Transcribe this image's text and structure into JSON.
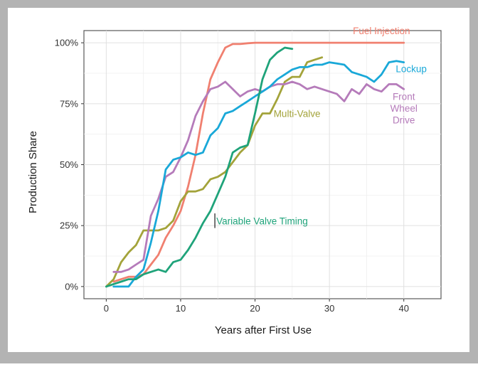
{
  "chart_data": {
    "type": "line",
    "xlabel": "Years after First Use",
    "ylabel": "Production Share",
    "xlim": [
      -3,
      45
    ],
    "ylim": [
      -0.05,
      1.05
    ],
    "x_ticks": [
      0,
      10,
      20,
      30,
      40
    ],
    "y_ticks": [
      {
        "value": 0,
        "label": "0%"
      },
      {
        "value": 0.25,
        "label": "25%"
      },
      {
        "value": 0.5,
        "label": "50%"
      },
      {
        "value": 0.75,
        "label": "75%"
      },
      {
        "value": 1.0,
        "label": "100%"
      }
    ],
    "grid": true,
    "legend": "direct labels on lines",
    "series": [
      {
        "name": "Fuel Injection",
        "color": "#F08070",
        "points": [
          [
            1,
            0.02
          ],
          [
            2,
            0.03
          ],
          [
            3,
            0.04
          ],
          [
            4,
            0.04
          ],
          [
            5,
            0.05
          ],
          [
            6,
            0.09
          ],
          [
            7,
            0.13
          ],
          [
            8,
            0.2
          ],
          [
            9,
            0.25
          ],
          [
            10,
            0.31
          ],
          [
            11,
            0.41
          ],
          [
            12,
            0.54
          ],
          [
            13,
            0.71
          ],
          [
            14,
            0.85
          ],
          [
            15,
            0.92
          ],
          [
            16,
            0.98
          ],
          [
            17,
            0.995
          ],
          [
            18,
            0.995
          ],
          [
            19,
            0.998
          ],
          [
            20,
            1.0
          ],
          [
            22,
            1.0
          ],
          [
            25,
            1.0
          ],
          [
            30,
            1.0
          ],
          [
            35,
            1.0
          ],
          [
            40,
            1.0
          ]
        ]
      },
      {
        "name": "Lockup",
        "color": "#19A8D8",
        "points": [
          [
            1,
            0.0
          ],
          [
            2,
            0.0
          ],
          [
            3,
            0.0
          ],
          [
            4,
            0.04
          ],
          [
            5,
            0.07
          ],
          [
            6,
            0.18
          ],
          [
            7,
            0.31
          ],
          [
            8,
            0.48
          ],
          [
            9,
            0.52
          ],
          [
            10,
            0.53
          ],
          [
            11,
            0.55
          ],
          [
            12,
            0.54
          ],
          [
            13,
            0.55
          ],
          [
            14,
            0.62
          ],
          [
            15,
            0.65
          ],
          [
            16,
            0.71
          ],
          [
            17,
            0.72
          ],
          [
            18,
            0.74
          ],
          [
            19,
            0.76
          ],
          [
            20,
            0.78
          ],
          [
            21,
            0.8
          ],
          [
            22,
            0.82
          ],
          [
            23,
            0.85
          ],
          [
            24,
            0.87
          ],
          [
            25,
            0.89
          ],
          [
            26,
            0.9
          ],
          [
            27,
            0.9
          ],
          [
            28,
            0.91
          ],
          [
            29,
            0.91
          ],
          [
            30,
            0.92
          ],
          [
            31,
            0.915
          ],
          [
            32,
            0.91
          ],
          [
            33,
            0.88
          ],
          [
            34,
            0.87
          ],
          [
            35,
            0.86
          ],
          [
            36,
            0.84
          ],
          [
            37,
            0.87
          ],
          [
            38,
            0.92
          ],
          [
            39,
            0.925
          ],
          [
            40,
            0.92
          ]
        ]
      },
      {
        "name": "Front Wheel Drive",
        "color": "#B57BBA",
        "points": [
          [
            1,
            0.06
          ],
          [
            2,
            0.06
          ],
          [
            3,
            0.07
          ],
          [
            4,
            0.09
          ],
          [
            5,
            0.11
          ],
          [
            6,
            0.29
          ],
          [
            7,
            0.36
          ],
          [
            8,
            0.45
          ],
          [
            9,
            0.47
          ],
          [
            10,
            0.53
          ],
          [
            11,
            0.6
          ],
          [
            12,
            0.7
          ],
          [
            13,
            0.76
          ],
          [
            14,
            0.81
          ],
          [
            15,
            0.82
          ],
          [
            16,
            0.84
          ],
          [
            17,
            0.81
          ],
          [
            18,
            0.78
          ],
          [
            19,
            0.8
          ],
          [
            20,
            0.81
          ],
          [
            21,
            0.8
          ],
          [
            22,
            0.82
          ],
          [
            23,
            0.83
          ],
          [
            24,
            0.83
          ],
          [
            25,
            0.84
          ],
          [
            26,
            0.83
          ],
          [
            27,
            0.81
          ],
          [
            28,
            0.82
          ],
          [
            29,
            0.81
          ],
          [
            30,
            0.8
          ],
          [
            31,
            0.79
          ],
          [
            32,
            0.76
          ],
          [
            33,
            0.81
          ],
          [
            34,
            0.79
          ],
          [
            35,
            0.83
          ],
          [
            36,
            0.81
          ],
          [
            37,
            0.8
          ],
          [
            38,
            0.83
          ],
          [
            39,
            0.83
          ],
          [
            40,
            0.81
          ]
        ]
      },
      {
        "name": "Multi-Valve",
        "color": "#A3A33A",
        "points": [
          [
            0,
            0.0
          ],
          [
            1,
            0.03
          ],
          [
            2,
            0.1
          ],
          [
            3,
            0.14
          ],
          [
            4,
            0.17
          ],
          [
            5,
            0.23
          ],
          [
            6,
            0.23
          ],
          [
            7,
            0.23
          ],
          [
            8,
            0.24
          ],
          [
            9,
            0.27
          ],
          [
            10,
            0.35
          ],
          [
            11,
            0.39
          ],
          [
            12,
            0.39
          ],
          [
            13,
            0.4
          ],
          [
            14,
            0.44
          ],
          [
            15,
            0.45
          ],
          [
            16,
            0.47
          ],
          [
            17,
            0.51
          ],
          [
            18,
            0.55
          ],
          [
            19,
            0.58
          ],
          [
            20,
            0.66
          ],
          [
            21,
            0.71
          ],
          [
            22,
            0.71
          ],
          [
            23,
            0.77
          ],
          [
            24,
            0.84
          ],
          [
            25,
            0.86
          ],
          [
            26,
            0.86
          ],
          [
            27,
            0.92
          ],
          [
            28,
            0.93
          ],
          [
            29,
            0.94
          ]
        ]
      },
      {
        "name": "Variable Valve Timing",
        "color": "#1FA37A",
        "points": [
          [
            0,
            0.0
          ],
          [
            1,
            0.01
          ],
          [
            2,
            0.02
          ],
          [
            3,
            0.03
          ],
          [
            4,
            0.03
          ],
          [
            5,
            0.05
          ],
          [
            6,
            0.06
          ],
          [
            7,
            0.07
          ],
          [
            8,
            0.06
          ],
          [
            9,
            0.1
          ],
          [
            10,
            0.11
          ],
          [
            11,
            0.15
          ],
          [
            12,
            0.2
          ],
          [
            13,
            0.26
          ],
          [
            14,
            0.31
          ],
          [
            15,
            0.38
          ],
          [
            16,
            0.45
          ],
          [
            17,
            0.55
          ],
          [
            18,
            0.57
          ],
          [
            19,
            0.58
          ],
          [
            20,
            0.71
          ],
          [
            21,
            0.85
          ],
          [
            22,
            0.93
          ],
          [
            23,
            0.96
          ],
          [
            24,
            0.98
          ],
          [
            25,
            0.975
          ]
        ]
      }
    ]
  }
}
